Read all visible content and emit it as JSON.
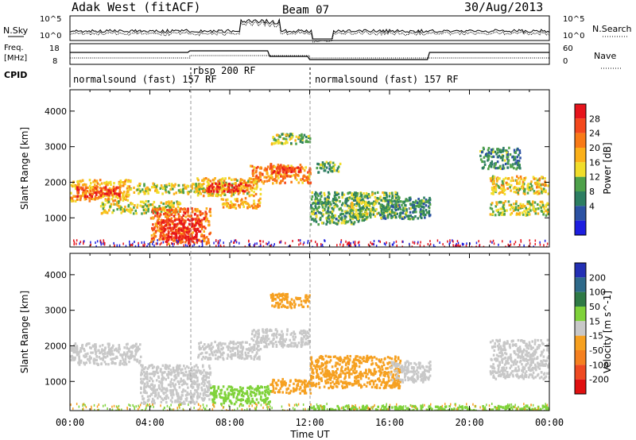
{
  "header": {
    "radar": "Adak West (fitACF)",
    "beam": "Beam 07",
    "date": "30/Aug/2013"
  },
  "top_panel": {
    "left_label": "N.Sky",
    "left_ticks": [
      "10^5",
      "10^0"
    ],
    "right_label": "N.Search",
    "right_ticks": [
      "10^5",
      "10^0"
    ],
    "freq_label_lines": [
      "Freq.",
      "[MHz]"
    ],
    "freq_ticks": [
      "18",
      "8"
    ],
    "nave_label": "Nave",
    "nave_ticks": [
      "60",
      "0"
    ],
    "cpid_label": "CPID",
    "cpid_segments": [
      {
        "label": "normalsound (fast) 157 RF",
        "start_ut": 0,
        "end_ut": 6
      },
      {
        "label": "rbsp 200 RF",
        "start_ut": 6,
        "end_ut": 12
      },
      {
        "label": "normalsound (fast) 157 RF",
        "start_ut": 12,
        "end_ut": 24
      }
    ]
  },
  "colorbars": {
    "power": {
      "label": "Power [dB]",
      "ticks": [
        "28",
        "24",
        "20",
        "16",
        "12",
        "8",
        "4"
      ],
      "colors": [
        "#e6141c",
        "#f4481c",
        "#f97a16",
        "#fbb019",
        "#f1dd2a",
        "#4ea14a",
        "#2d7e62",
        "#2c52a3",
        "#1d1ee0"
      ]
    },
    "velocity": {
      "label": "Velocity [m s^-1]",
      "ticks": [
        "200",
        "100",
        "50",
        "15",
        "-15",
        "-50",
        "-100",
        "-200"
      ],
      "colors": [
        "#2330b4",
        "#2e6a8a",
        "#2f7a46",
        "#7fd23a",
        "#c8c8c8",
        "#f6a020",
        "#f58020",
        "#ee4a22",
        "#e01010"
      ]
    }
  },
  "chart_data": [
    {
      "type": "heatmap",
      "title": "Power",
      "xlabel": "",
      "ylabel": "Slant Range [km]",
      "xlim": [
        0,
        24
      ],
      "ylim": [
        180,
        4600
      ],
      "y_ticks": [
        "4000",
        "3000",
        "2000",
        "1000"
      ],
      "unit": "dB",
      "blobs": [
        {
          "x0": 0.0,
          "x1": 3.0,
          "y0": 1500,
          "y1": 2100,
          "value": 18
        },
        {
          "x0": 0.3,
          "x1": 2.5,
          "y0": 1620,
          "y1": 1900,
          "value": 26
        },
        {
          "x0": 1.5,
          "x1": 5.5,
          "y0": 1150,
          "y1": 1500,
          "value": 14
        },
        {
          "x0": 3.0,
          "x1": 7.0,
          "y0": 1700,
          "y1": 2000,
          "value": 14
        },
        {
          "x0": 4.0,
          "x1": 7.0,
          "y0": 300,
          "y1": 1300,
          "value": 22
        },
        {
          "x0": 4.5,
          "x1": 6.5,
          "y0": 400,
          "y1": 1000,
          "value": 28
        },
        {
          "x0": 6.3,
          "x1": 9.5,
          "y0": 1650,
          "y1": 2150,
          "value": 16
        },
        {
          "x0": 6.8,
          "x1": 9.0,
          "y0": 1750,
          "y1": 2000,
          "value": 26
        },
        {
          "x0": 9.0,
          "x1": 12.0,
          "y0": 2000,
          "y1": 2500,
          "value": 20
        },
        {
          "x0": 10.0,
          "x1": 11.5,
          "y0": 2300,
          "y1": 2550,
          "value": 26
        },
        {
          "x0": 10.0,
          "x1": 12.0,
          "y0": 3100,
          "y1": 3400,
          "value": 12
        },
        {
          "x0": 7.5,
          "x1": 9.5,
          "y0": 1300,
          "y1": 1600,
          "value": 18
        },
        {
          "x0": 12.0,
          "x1": 15.0,
          "y0": 850,
          "y1": 1750,
          "value": 10
        },
        {
          "x0": 14.0,
          "x1": 16.5,
          "y0": 1050,
          "y1": 1750,
          "value": 12
        },
        {
          "x0": 15.5,
          "x1": 18.0,
          "y0": 1000,
          "y1": 1600,
          "value": 8
        },
        {
          "x0": 12.3,
          "x1": 13.5,
          "y0": 2300,
          "y1": 2600,
          "value": 10
        },
        {
          "x0": 21.0,
          "x1": 24.0,
          "y0": 1700,
          "y1": 2200,
          "value": 16
        },
        {
          "x0": 21.0,
          "x1": 24.0,
          "y0": 1100,
          "y1": 1500,
          "value": 14
        },
        {
          "x0": 20.5,
          "x1": 22.5,
          "y0": 2400,
          "y1": 3000,
          "value": 8
        }
      ]
    },
    {
      "type": "heatmap",
      "title": "Velocity",
      "xlabel": "Time UT",
      "ylabel": "Slant Range [km]",
      "xlim": [
        0,
        24
      ],
      "ylim": [
        180,
        4600
      ],
      "x_ticks": [
        "00:00",
        "04:00",
        "08:00",
        "12:00",
        "16:00",
        "20:00",
        "00:00"
      ],
      "y_ticks": [
        "4000",
        "3000",
        "2000",
        "1000"
      ],
      "unit": "m s^-1",
      "blobs": [
        {
          "x0": 0.0,
          "x1": 3.5,
          "y0": 1500,
          "y1": 2100,
          "value": 0
        },
        {
          "x0": 3.5,
          "x1": 7.0,
          "y0": 400,
          "y1": 1500,
          "value": 0
        },
        {
          "x0": 6.3,
          "x1": 9.5,
          "y0": 1650,
          "y1": 2150,
          "value": 0
        },
        {
          "x0": 9.0,
          "x1": 12.0,
          "y0": 2000,
          "y1": 2500,
          "value": 0
        },
        {
          "x0": 10.0,
          "x1": 12.0,
          "y0": 3100,
          "y1": 3500,
          "value": -40
        },
        {
          "x0": 10.0,
          "x1": 12.0,
          "y0": 700,
          "y1": 1100,
          "value": -40
        },
        {
          "x0": 12.0,
          "x1": 16.5,
          "y0": 850,
          "y1": 1750,
          "value": -60
        },
        {
          "x0": 16.0,
          "x1": 18.0,
          "y0": 1000,
          "y1": 1600,
          "value": 0
        },
        {
          "x0": 21.0,
          "x1": 24.0,
          "y0": 1100,
          "y1": 2200,
          "value": 0
        },
        {
          "x0": 7.0,
          "x1": 10.0,
          "y0": 400,
          "y1": 900,
          "value": 30
        },
        {
          "x0": 12.0,
          "x1": 24.0,
          "y0": 180,
          "y1": 350,
          "value": 30
        }
      ]
    }
  ]
}
